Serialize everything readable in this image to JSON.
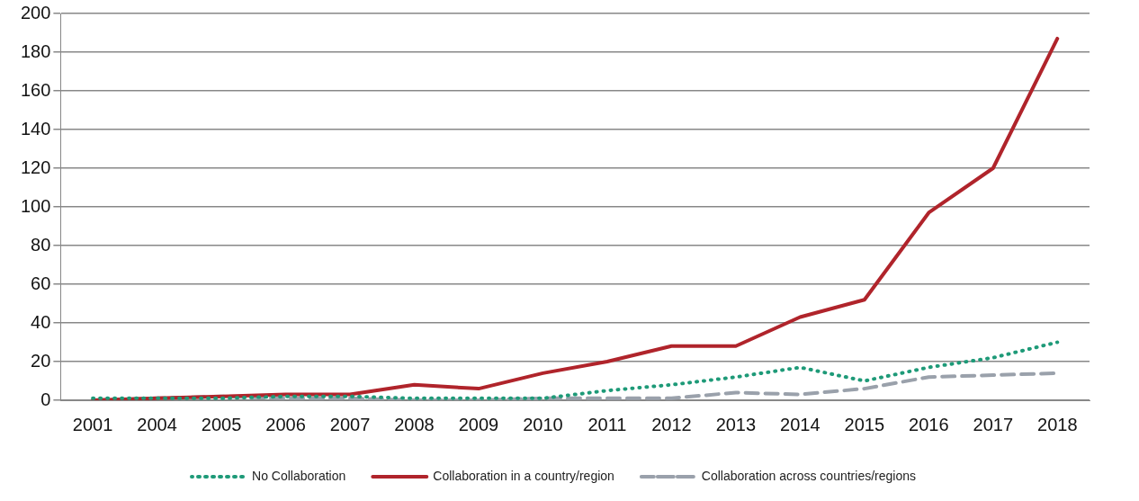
{
  "chart_data": {
    "type": "line",
    "categories": [
      "2001",
      "2004",
      "2005",
      "2006",
      "2007",
      "2008",
      "2009",
      "2010",
      "2011",
      "2012",
      "2013",
      "2014",
      "2015",
      "2016",
      "2017",
      "2018"
    ],
    "series": [
      {
        "name": "No Collaboration",
        "color": "#1e9a78",
        "line_style": "dotted",
        "values": [
          1,
          1,
          1,
          2,
          2,
          1,
          1,
          1,
          5,
          8,
          12,
          17,
          10,
          17,
          22,
          30
        ]
      },
      {
        "name": "Collaboration in a country/region",
        "color": "#b0242b",
        "line_style": "solid",
        "values": [
          0,
          1,
          2,
          3,
          3,
          8,
          6,
          14,
          20,
          28,
          28,
          43,
          52,
          97,
          120,
          187
        ]
      },
      {
        "name": "Collaboration across countries/regions",
        "color": "#9aa1ab",
        "line_style": "dashed",
        "values": [
          0,
          1,
          2,
          1,
          1,
          0,
          0,
          1,
          1,
          1,
          4,
          3,
          6,
          12,
          13,
          14
        ]
      }
    ],
    "ylim": [
      0,
      200
    ],
    "yticks": [
      0,
      20,
      40,
      60,
      80,
      100,
      120,
      140,
      160,
      180,
      200
    ],
    "grid": "y",
    "legend": "bottom",
    "marker": "none"
  }
}
